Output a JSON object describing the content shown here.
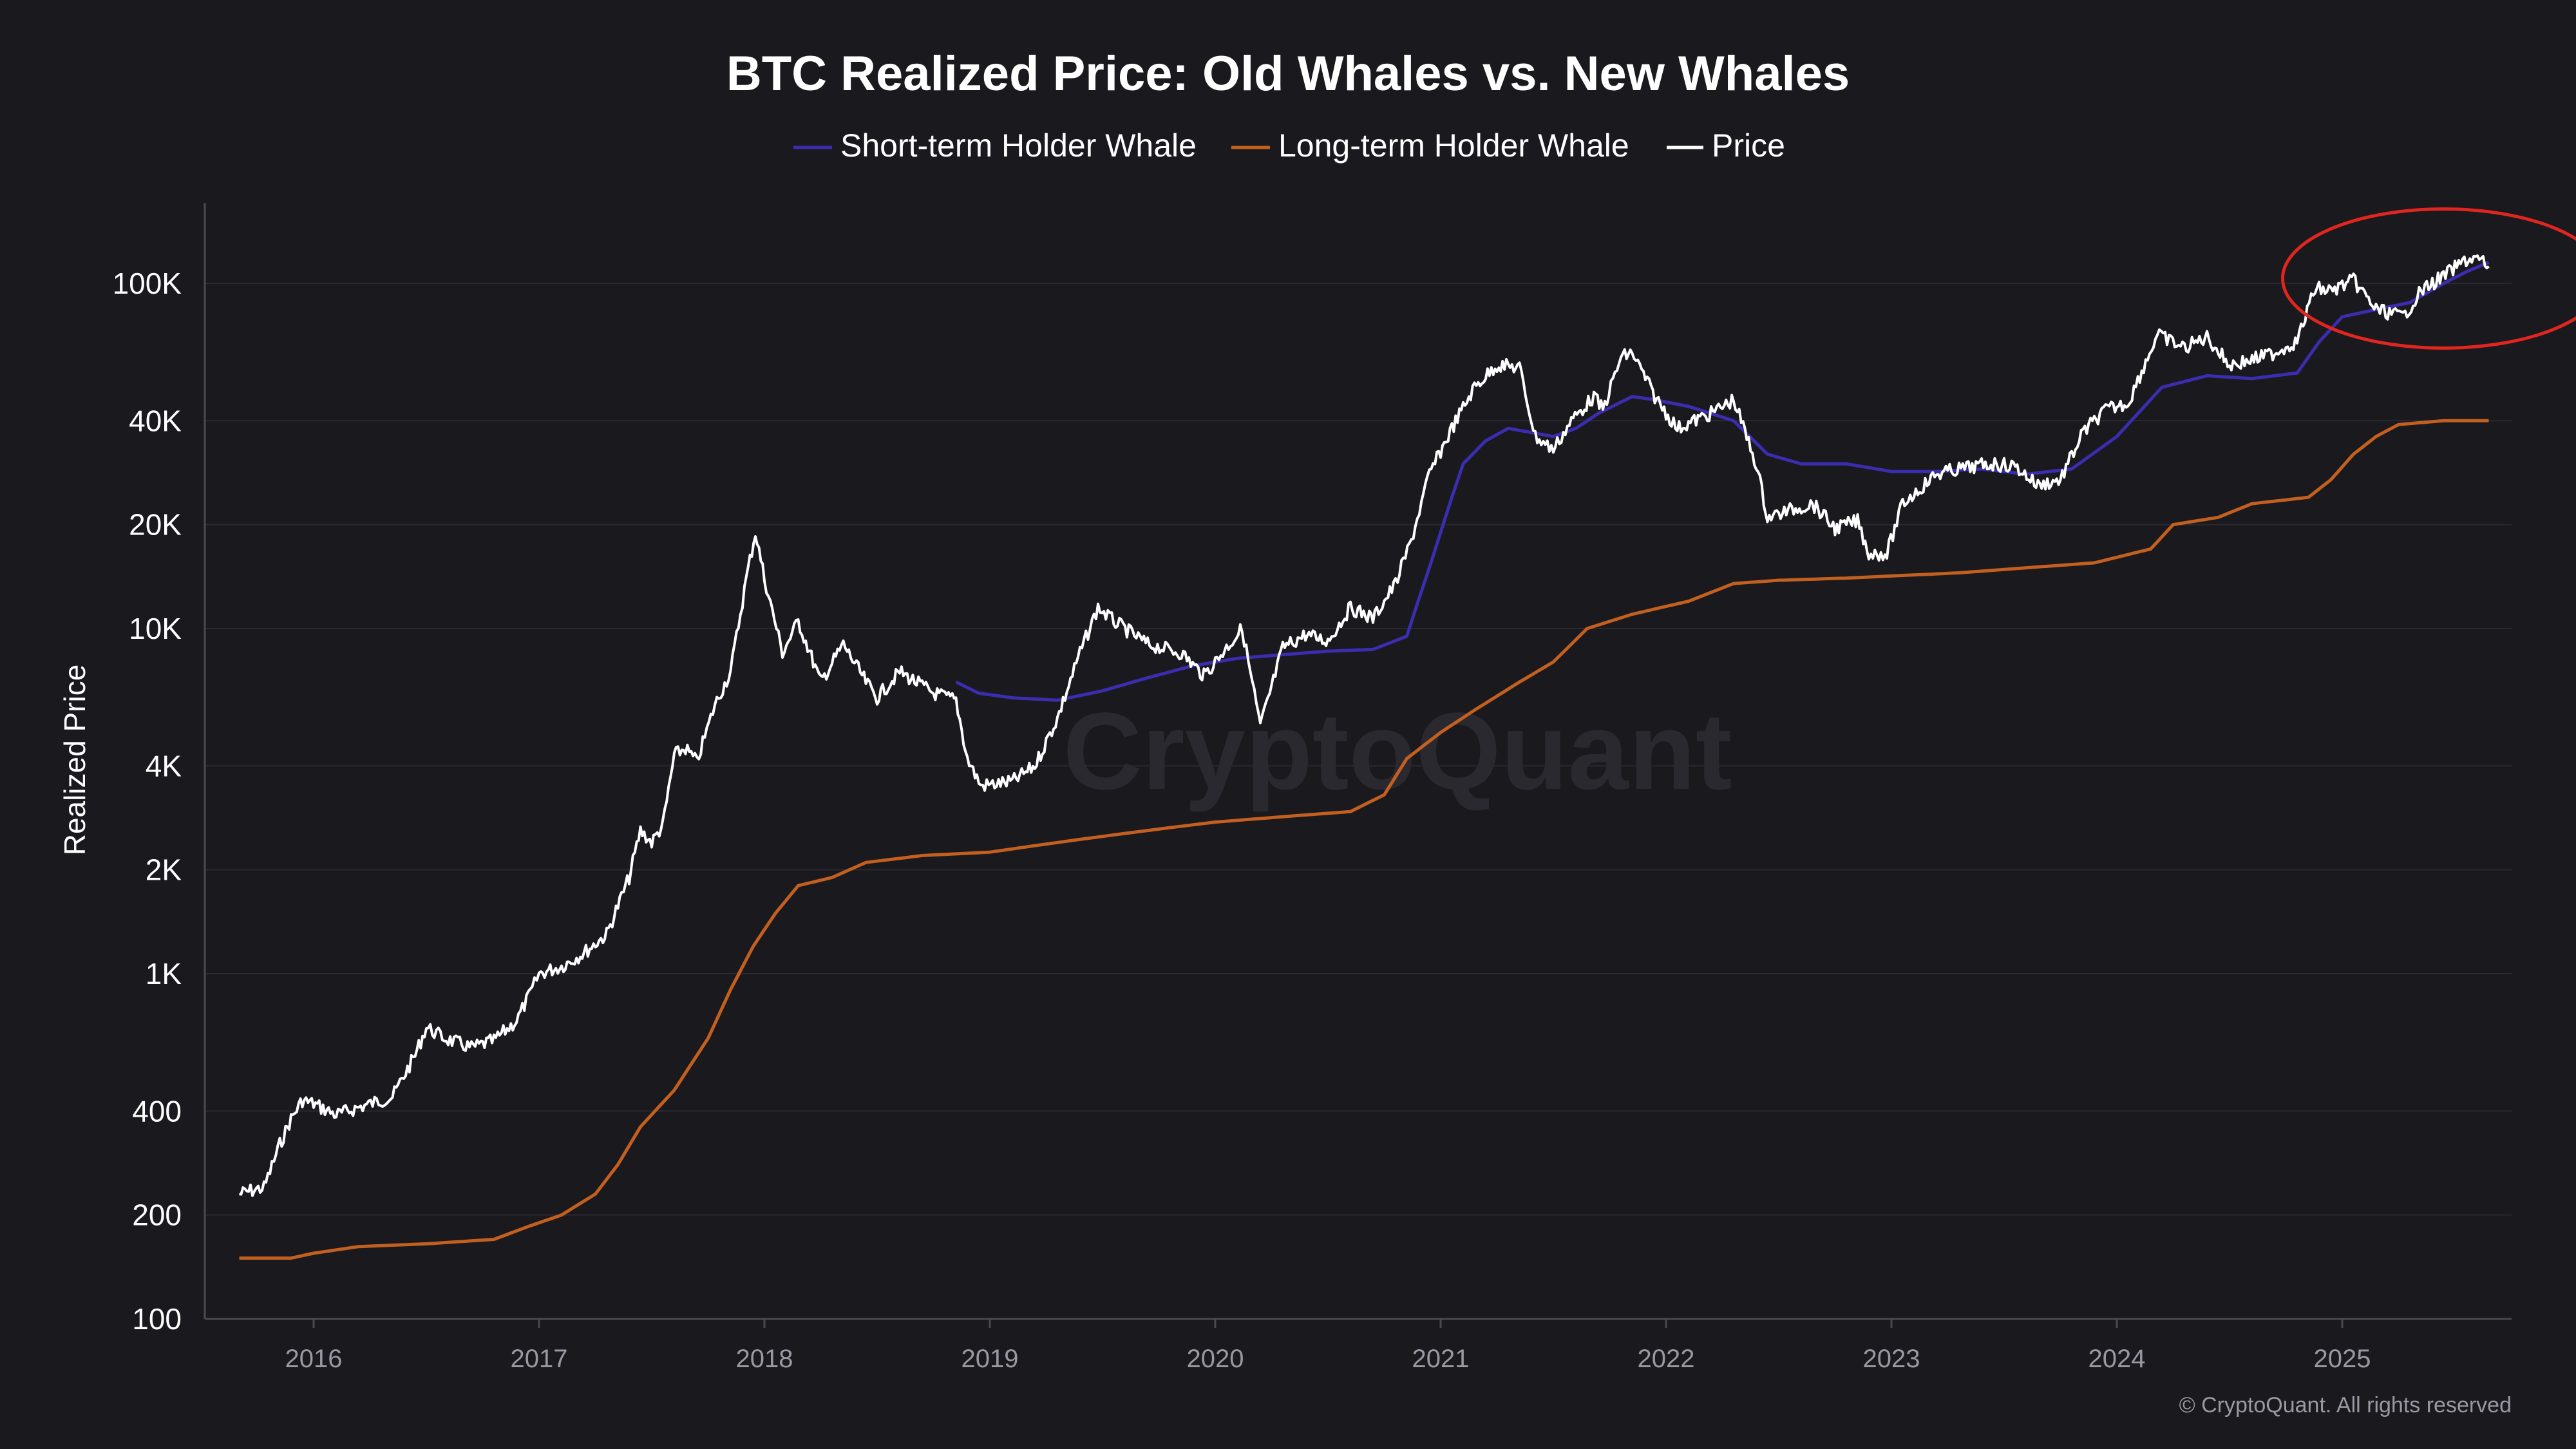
{
  "colors": {
    "background": "#1a191e",
    "grid": "#2a2930",
    "sth": "#3b2db0",
    "lth": "#c4601f",
    "price": "#ffffff",
    "highlight": "#e0261e"
  },
  "chart_data": {
    "type": "line",
    "title": "BTC Realized Price: Old Whales vs. New Whales",
    "ylabel": "Realized Price",
    "xlabel": "",
    "yscale": "log",
    "ylim": [
      100,
      180000
    ],
    "xlim": [
      2015.67,
      2025.67
    ],
    "yticks": [
      {
        "value": 100,
        "label": "100"
      },
      {
        "value": 200,
        "label": "200"
      },
      {
        "value": 400,
        "label": "400"
      },
      {
        "value": 1000,
        "label": "1K"
      },
      {
        "value": 2000,
        "label": "2K"
      },
      {
        "value": 4000,
        "label": "4K"
      },
      {
        "value": 10000,
        "label": "10K"
      },
      {
        "value": 20000,
        "label": "20K"
      },
      {
        "value": 40000,
        "label": "40K"
      },
      {
        "value": 100000,
        "label": "100K"
      }
    ],
    "xticks": [
      {
        "value": 2016,
        "label": "2016"
      },
      {
        "value": 2017,
        "label": "2017"
      },
      {
        "value": 2018,
        "label": "2018"
      },
      {
        "value": 2019,
        "label": "2019"
      },
      {
        "value": 2020,
        "label": "2020"
      },
      {
        "value": 2021,
        "label": "2021"
      },
      {
        "value": 2022,
        "label": "2022"
      },
      {
        "value": 2023,
        "label": "2023"
      },
      {
        "value": 2024,
        "label": "2024"
      },
      {
        "value": 2025,
        "label": "2025"
      }
    ],
    "series": [
      {
        "name": "Short-term Holder Whale",
        "color": "#3b2db0",
        "points": [
          [
            2018.85,
            7000
          ],
          [
            2018.95,
            6500
          ],
          [
            2019.1,
            6300
          ],
          [
            2019.3,
            6200
          ],
          [
            2019.5,
            6600
          ],
          [
            2019.7,
            7200
          ],
          [
            2019.9,
            7800
          ],
          [
            2020.1,
            8200
          ],
          [
            2020.3,
            8400
          ],
          [
            2020.5,
            8600
          ],
          [
            2020.7,
            8700
          ],
          [
            2020.85,
            9500
          ],
          [
            2020.9,
            12000
          ],
          [
            2020.95,
            15000
          ],
          [
            2021.0,
            19000
          ],
          [
            2021.05,
            24000
          ],
          [
            2021.1,
            30000
          ],
          [
            2021.2,
            35000
          ],
          [
            2021.3,
            38000
          ],
          [
            2021.4,
            37000
          ],
          [
            2021.5,
            36000
          ],
          [
            2021.6,
            38000
          ],
          [
            2021.7,
            42000
          ],
          [
            2021.85,
            47000
          ],
          [
            2021.95,
            46000
          ],
          [
            2022.1,
            44000
          ],
          [
            2022.3,
            40000
          ],
          [
            2022.45,
            32000
          ],
          [
            2022.6,
            30000
          ],
          [
            2022.8,
            30000
          ],
          [
            2023.0,
            28500
          ],
          [
            2023.2,
            28500
          ],
          [
            2023.4,
            29000
          ],
          [
            2023.6,
            28000
          ],
          [
            2023.8,
            29000
          ],
          [
            2024.0,
            36000
          ],
          [
            2024.2,
            50000
          ],
          [
            2024.4,
            54000
          ],
          [
            2024.6,
            53000
          ],
          [
            2024.8,
            55000
          ],
          [
            2024.9,
            68000
          ],
          [
            2025.0,
            80000
          ],
          [
            2025.15,
            84000
          ],
          [
            2025.3,
            88000
          ],
          [
            2025.45,
            100000
          ],
          [
            2025.55,
            108000
          ],
          [
            2025.65,
            115000
          ]
        ]
      },
      {
        "name": "Long-term Holder Whale",
        "color": "#c4601f",
        "points": [
          [
            2015.67,
            150
          ],
          [
            2015.9,
            150
          ],
          [
            2016.0,
            155
          ],
          [
            2016.2,
            162
          ],
          [
            2016.5,
            165
          ],
          [
            2016.8,
            170
          ],
          [
            2016.95,
            185
          ],
          [
            2017.1,
            200
          ],
          [
            2017.25,
            230
          ],
          [
            2017.35,
            280
          ],
          [
            2017.45,
            360
          ],
          [
            2017.6,
            460
          ],
          [
            2017.75,
            650
          ],
          [
            2017.85,
            900
          ],
          [
            2017.95,
            1200
          ],
          [
            2018.05,
            1500
          ],
          [
            2018.15,
            1800
          ],
          [
            2018.3,
            1900
          ],
          [
            2018.45,
            2100
          ],
          [
            2018.7,
            2200
          ],
          [
            2019.0,
            2250
          ],
          [
            2019.2,
            2350
          ],
          [
            2019.4,
            2450
          ],
          [
            2019.6,
            2550
          ],
          [
            2019.8,
            2650
          ],
          [
            2020.0,
            2750
          ],
          [
            2020.3,
            2850
          ],
          [
            2020.6,
            2950
          ],
          [
            2020.75,
            3300
          ],
          [
            2020.85,
            4200
          ],
          [
            2021.0,
            5000
          ],
          [
            2021.15,
            5800
          ],
          [
            2021.35,
            7000
          ],
          [
            2021.5,
            8000
          ],
          [
            2021.65,
            10000
          ],
          [
            2021.85,
            11000
          ],
          [
            2022.1,
            12000
          ],
          [
            2022.3,
            13500
          ],
          [
            2022.5,
            13800
          ],
          [
            2022.8,
            14000
          ],
          [
            2023.0,
            14200
          ],
          [
            2023.3,
            14500
          ],
          [
            2023.6,
            15000
          ],
          [
            2023.9,
            15500
          ],
          [
            2024.15,
            17000
          ],
          [
            2024.25,
            20000
          ],
          [
            2024.45,
            21000
          ],
          [
            2024.6,
            23000
          ],
          [
            2024.85,
            24000
          ],
          [
            2024.95,
            27000
          ],
          [
            2025.05,
            32000
          ],
          [
            2025.15,
            36000
          ],
          [
            2025.25,
            39000
          ],
          [
            2025.45,
            40000
          ],
          [
            2025.65,
            40000
          ]
        ]
      },
      {
        "name": "Price",
        "color": "#ffffff",
        "points": [
          [
            2015.67,
            230
          ],
          [
            2015.72,
            235
          ],
          [
            2015.78,
            240
          ],
          [
            2015.85,
            320
          ],
          [
            2015.9,
            380
          ],
          [
            2015.95,
            430
          ],
          [
            2016.0,
            420
          ],
          [
            2016.1,
            390
          ],
          [
            2016.2,
            410
          ],
          [
            2016.35,
            440
          ],
          [
            2016.45,
            580
          ],
          [
            2016.5,
            700
          ],
          [
            2016.58,
            650
          ],
          [
            2016.7,
            610
          ],
          [
            2016.8,
            640
          ],
          [
            2016.9,
            730
          ],
          [
            2016.97,
            900
          ],
          [
            2017.0,
            1000
          ],
          [
            2017.1,
            1050
          ],
          [
            2017.2,
            1150
          ],
          [
            2017.3,
            1300
          ],
          [
            2017.4,
            1900
          ],
          [
            2017.45,
            2600
          ],
          [
            2017.5,
            2400
          ],
          [
            2017.55,
            2700
          ],
          [
            2017.6,
            4300
          ],
          [
            2017.65,
            4500
          ],
          [
            2017.7,
            4100
          ],
          [
            2017.78,
            6000
          ],
          [
            2017.85,
            7500
          ],
          [
            2017.92,
            14000
          ],
          [
            2017.96,
            19000
          ],
          [
            2018.0,
            14000
          ],
          [
            2018.08,
            8500
          ],
          [
            2018.15,
            10500
          ],
          [
            2018.25,
            7000
          ],
          [
            2018.35,
            9000
          ],
          [
            2018.45,
            7000
          ],
          [
            2018.5,
            6300
          ],
          [
            2018.6,
            7500
          ],
          [
            2018.75,
            6500
          ],
          [
            2018.85,
            6200
          ],
          [
            2018.9,
            4200
          ],
          [
            2018.96,
            3500
          ],
          [
            2019.1,
            3600
          ],
          [
            2019.2,
            4000
          ],
          [
            2019.3,
            5500
          ],
          [
            2019.4,
            8500
          ],
          [
            2019.48,
            11500
          ],
          [
            2019.55,
            10500
          ],
          [
            2019.7,
            9000
          ],
          [
            2019.85,
            8500
          ],
          [
            2019.95,
            7300
          ],
          [
            2020.05,
            8800
          ],
          [
            2020.12,
            10000
          ],
          [
            2020.2,
            5200
          ],
          [
            2020.3,
            8800
          ],
          [
            2020.4,
            9600
          ],
          [
            2020.5,
            9200
          ],
          [
            2020.6,
            11500
          ],
          [
            2020.7,
            10700
          ],
          [
            2020.8,
            13500
          ],
          [
            2020.87,
            18000
          ],
          [
            2020.95,
            28000
          ],
          [
            2021.05,
            38000
          ],
          [
            2021.15,
            50000
          ],
          [
            2021.25,
            58000
          ],
          [
            2021.35,
            57000
          ],
          [
            2021.42,
            36000
          ],
          [
            2021.5,
            33000
          ],
          [
            2021.58,
            40000
          ],
          [
            2021.68,
            47000
          ],
          [
            2021.72,
            43000
          ],
          [
            2021.8,
            61000
          ],
          [
            2021.85,
            63000
          ],
          [
            2021.95,
            47000
          ],
          [
            2022.05,
            38000
          ],
          [
            2022.2,
            42000
          ],
          [
            2022.3,
            46000
          ],
          [
            2022.4,
            30000
          ],
          [
            2022.45,
            21000
          ],
          [
            2022.55,
            22000
          ],
          [
            2022.65,
            23000
          ],
          [
            2022.75,
            19500
          ],
          [
            2022.85,
            20500
          ],
          [
            2022.9,
            16500
          ],
          [
            2022.98,
            16500
          ],
          [
            2023.05,
            23000
          ],
          [
            2023.2,
            28000
          ],
          [
            2023.3,
            29000
          ],
          [
            2023.45,
            30000
          ],
          [
            2023.55,
            29500
          ],
          [
            2023.65,
            26000
          ],
          [
            2023.75,
            27000
          ],
          [
            2023.85,
            37000
          ],
          [
            2023.95,
            43000
          ],
          [
            2024.05,
            45000
          ],
          [
            2024.18,
            71000
          ],
          [
            2024.3,
            65000
          ],
          [
            2024.4,
            70000
          ],
          [
            2024.5,
            58000
          ],
          [
            2024.6,
            60000
          ],
          [
            2024.7,
            63000
          ],
          [
            2024.8,
            68000
          ],
          [
            2024.88,
            97000
          ],
          [
            2024.95,
            95000
          ],
          [
            2025.05,
            102000
          ],
          [
            2025.15,
            84000
          ],
          [
            2025.27,
            80000
          ],
          [
            2025.35,
            95000
          ],
          [
            2025.45,
            105000
          ],
          [
            2025.55,
            117000
          ],
          [
            2025.6,
            118000
          ],
          [
            2025.65,
            112000
          ]
        ]
      }
    ],
    "watermark": "CryptoQuant",
    "copyright": "© CryptoQuant. All rights reserved",
    "annotation": {
      "type": "circle",
      "x": 2025.45,
      "y": 115000
    }
  }
}
